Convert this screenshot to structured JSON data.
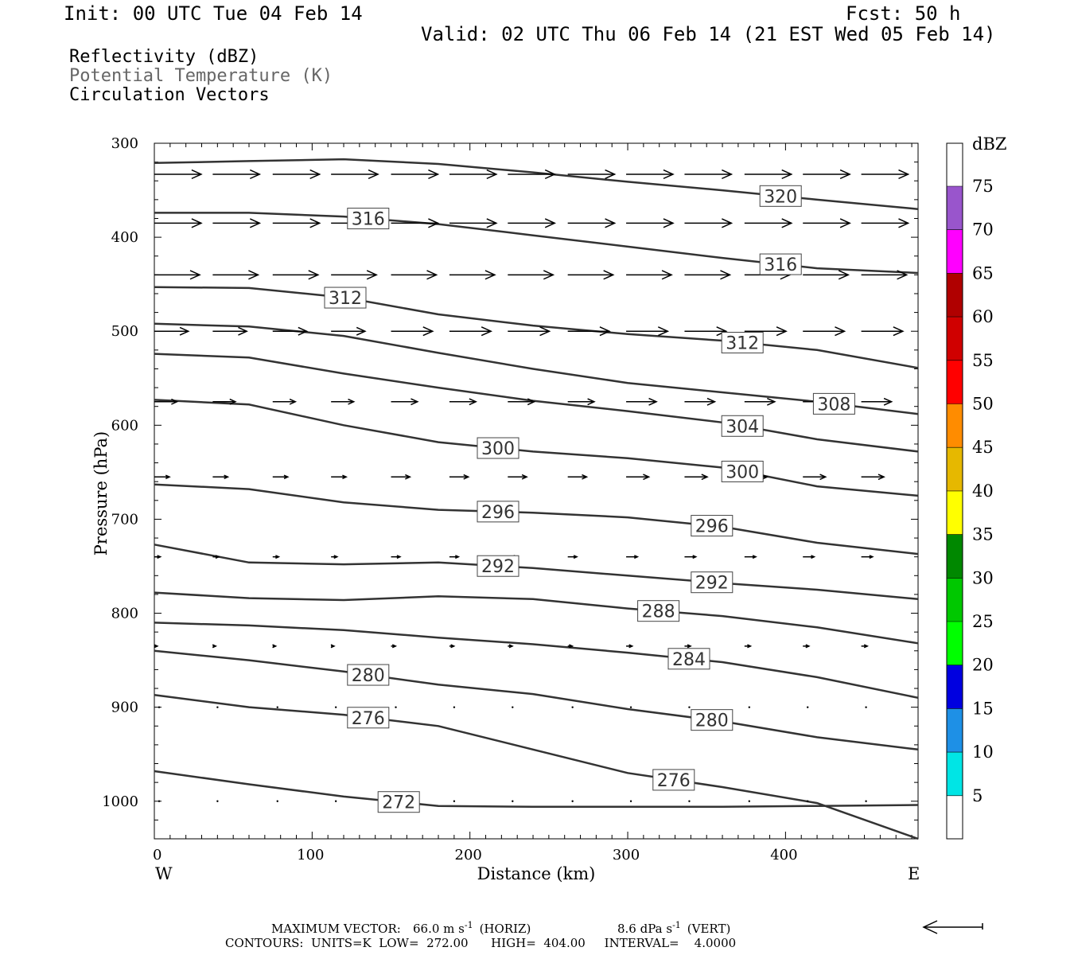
{
  "header": {
    "init": "Init: 00 UTC Tue 04 Feb 14",
    "fcst": "Fcst:   50 h",
    "valid": "Valid: 02 UTC Thu 06 Feb 14 (21 EST Wed 05 Feb 14)",
    "field1": "Reflectivity (dBZ)",
    "field2": "Potential Temperature (K)",
    "field3": "Circulation Vectors"
  },
  "axes": {
    "xlabel": "Distance (km)",
    "ylabel": "Pressure (hPa)",
    "west": "W",
    "east": "E",
    "xlim": [
      0,
      484
    ],
    "ylim_hpa": [
      300,
      1040
    ],
    "xticks": [
      0,
      100,
      200,
      300,
      400
    ],
    "yticks": [
      300,
      400,
      500,
      600,
      700,
      800,
      900,
      1000
    ]
  },
  "colorbar": {
    "title": "dBZ",
    "levels": [
      5,
      10,
      15,
      20,
      25,
      30,
      35,
      40,
      45,
      50,
      55,
      60,
      65,
      70,
      75
    ],
    "colors": [
      "#ffffff",
      "#00e5e5",
      "#1e90e6",
      "#0000e0",
      "#00ff00",
      "#00c800",
      "#008800",
      "#ffff00",
      "#e6b800",
      "#ff8c00",
      "#ff0000",
      "#d00000",
      "#b00000",
      "#ff00ff",
      "#9955cc",
      "#ffffff"
    ]
  },
  "footer": {
    "max_vector_label": "MAXIMUM VECTOR:",
    "max_vector_horiz": "66.0 m s",
    "horiz_tag": "(HORIZ)",
    "max_vector_vert": "8.6 dPa s",
    "vert_tag": "(VERT)",
    "contours_line": "CONTOURS:  UNITS=K  LOW=  272.00      HIGH=  404.00     INTERVAL=    4.0000"
  },
  "chart_data": {
    "type": "line",
    "title": "",
    "xlabel": "Distance (km)",
    "ylabel": "Pressure (hPa)",
    "xlim": [
      0,
      484
    ],
    "ylim": [
      300,
      1040
    ],
    "y_inverted": true,
    "isentropes_K": [
      {
        "value": 320,
        "x": [
          0,
          60,
          120,
          180,
          240,
          300,
          360,
          420,
          484
        ],
        "p": [
          321,
          319,
          317,
          322,
          331,
          341,
          350,
          360,
          370
        ]
      },
      {
        "value": 316,
        "x": [
          0,
          60,
          120,
          180,
          240,
          300,
          360,
          420,
          484
        ],
        "p": [
          374,
          374,
          378,
          386,
          398,
          410,
          422,
          433,
          438
        ]
      },
      {
        "value": 312,
        "x": [
          0,
          60,
          120,
          180,
          240,
          300,
          360,
          420,
          484
        ],
        "p": [
          453,
          454,
          464,
          482,
          494,
          503,
          510,
          520,
          539
        ]
      },
      {
        "value": 308,
        "x": [
          0,
          60,
          120,
          180,
          240,
          300,
          360,
          420,
          484
        ],
        "p": [
          492,
          495,
          505,
          523,
          540,
          555,
          565,
          575,
          588
        ]
      },
      {
        "value": 304,
        "x": [
          0,
          60,
          120,
          180,
          240,
          300,
          360,
          420,
          484
        ],
        "p": [
          524,
          528,
          545,
          560,
          574,
          585,
          597,
          615,
          628
        ]
      },
      {
        "value": 300,
        "x": [
          0,
          60,
          120,
          180,
          240,
          300,
          360,
          420,
          484
        ],
        "p": [
          573,
          578,
          600,
          618,
          628,
          635,
          645,
          665,
          675
        ]
      },
      {
        "value": 296,
        "x": [
          0,
          60,
          120,
          180,
          240,
          300,
          360,
          420,
          484
        ],
        "p": [
          663,
          668,
          682,
          690,
          693,
          698,
          708,
          725,
          737
        ]
      },
      {
        "value": 292,
        "x": [
          0,
          60,
          120,
          180,
          240,
          300,
          360,
          420,
          484
        ],
        "p": [
          727,
          746,
          748,
          746,
          752,
          760,
          768,
          775,
          785
        ]
      },
      {
        "value": 288,
        "x": [
          0,
          60,
          120,
          180,
          240,
          300,
          360,
          420,
          484
        ],
        "p": [
          778,
          784,
          786,
          782,
          785,
          795,
          803,
          815,
          832
        ]
      },
      {
        "value": 284,
        "x": [
          0,
          60,
          120,
          180,
          240,
          300,
          360,
          420,
          484
        ],
        "p": [
          810,
          813,
          818,
          826,
          833,
          842,
          852,
          868,
          890
        ]
      },
      {
        "value": 280,
        "x": [
          0,
          60,
          120,
          180,
          240,
          300,
          360,
          420,
          484
        ],
        "p": [
          840,
          850,
          862,
          876,
          886,
          902,
          915,
          932,
          945
        ]
      },
      {
        "value": 276,
        "x": [
          0,
          60,
          120,
          180,
          240,
          300,
          360,
          420,
          484
        ],
        "p": [
          887,
          900,
          908,
          920,
          945,
          970,
          985,
          1002,
          1040
        ]
      },
      {
        "value": 272,
        "x": [
          0,
          60,
          120,
          180,
          240,
          300,
          360,
          420,
          484
        ],
        "p": [
          968,
          982,
          995,
          1005,
          1006,
          1006,
          1006,
          1005,
          1004
        ]
      }
    ],
    "vectors": {
      "x_km": [
        0,
        37,
        75,
        112,
        150,
        187,
        224,
        262,
        299,
        336,
        374,
        411,
        448
      ],
      "p_hpa": [
        333,
        385,
        440,
        500,
        575,
        655,
        740,
        835,
        900,
        1000
      ],
      "u_ms": [
        [
          62,
          62,
          62,
          62,
          62,
          62,
          62,
          62,
          62,
          62,
          62,
          62,
          62
        ],
        [
          62,
          62,
          62,
          62,
          62,
          62,
          62,
          62,
          62,
          62,
          62,
          62,
          62
        ],
        [
          60,
          60,
          60,
          60,
          60,
          60,
          60,
          60,
          60,
          60,
          60,
          60,
          60
        ],
        [
          45,
          45,
          45,
          45,
          55,
          55,
          55,
          55,
          55,
          55,
          55,
          55,
          55
        ],
        [
          30,
          30,
          30,
          30,
          35,
          35,
          35,
          35,
          40,
          40,
          40,
          40,
          40
        ],
        [
          20,
          20,
          20,
          20,
          25,
          25,
          25,
          25,
          30,
          30,
          30,
          30,
          30
        ],
        [
          8,
          8,
          8,
          8,
          12,
          12,
          12,
          12,
          15,
          15,
          15,
          15,
          15
        ],
        [
          4,
          4,
          4,
          4,
          6,
          6,
          6,
          6,
          8,
          8,
          8,
          8,
          8
        ],
        [
          0,
          0,
          0,
          1,
          1,
          1,
          1,
          1,
          1,
          2,
          2,
          2,
          2
        ],
        [
          0,
          0,
          0,
          0,
          0,
          0,
          0,
          0,
          0,
          0,
          0,
          0,
          0
        ]
      ]
    },
    "reflectivity_dbz": "none shaded"
  }
}
